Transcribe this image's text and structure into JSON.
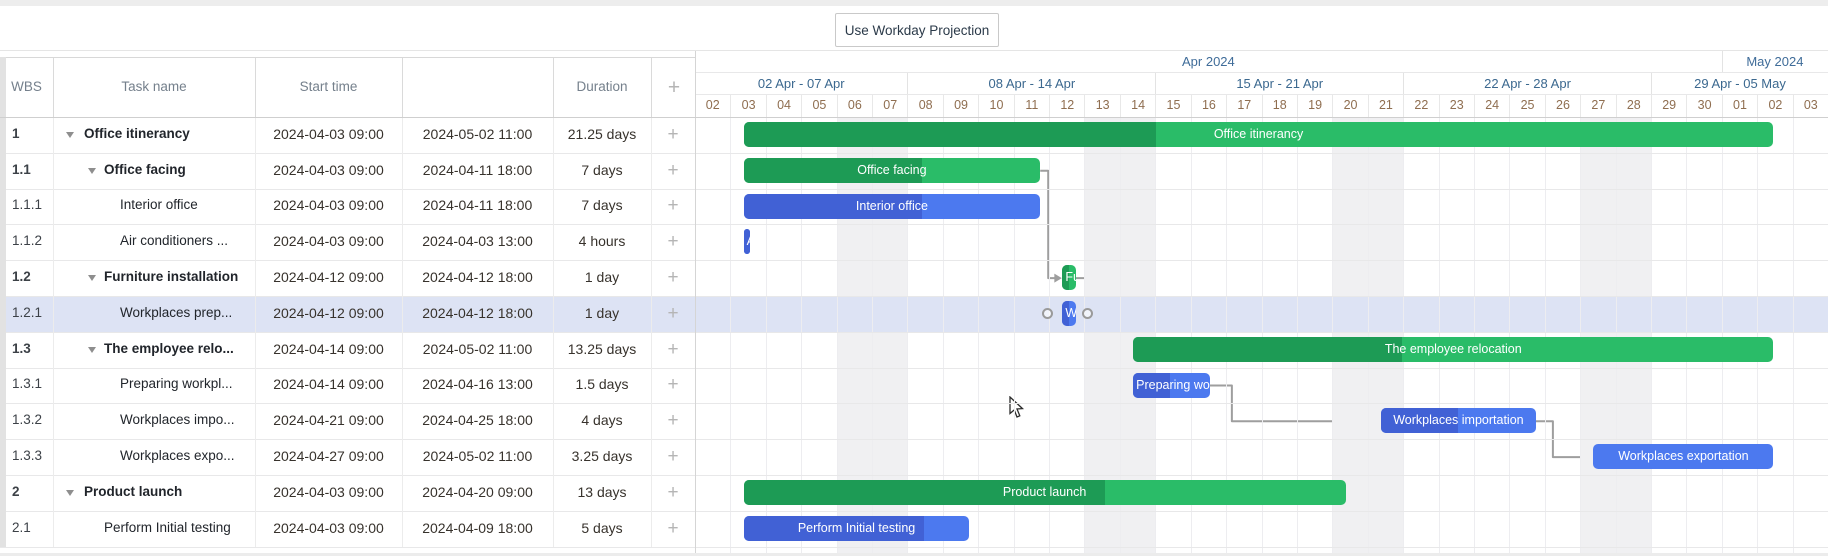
{
  "toolbar": {
    "button_label": "Use Workday Projection"
  },
  "table": {
    "columns": [
      {
        "id": "wbs",
        "label": "WBS"
      },
      {
        "id": "task-name",
        "label": "Task name"
      },
      {
        "id": "start-time",
        "label": "Start time"
      },
      {
        "id": "end-time",
        "label": ""
      },
      {
        "id": "duration",
        "label": "Duration"
      },
      {
        "id": "add-column",
        "label": "+"
      }
    ]
  },
  "timeline": {
    "months": [
      {
        "label": "Apr 2024",
        "days": 29
      },
      {
        "label": "May 2024",
        "days": 3
      }
    ],
    "weeks": [
      {
        "label": "02 Apr - 07 Apr",
        "days": 6
      },
      {
        "label": "08 Apr - 14 Apr",
        "days": 7
      },
      {
        "label": "15 Apr - 21 Apr",
        "days": 7
      },
      {
        "label": "22 Apr - 28 Apr",
        "days": 7
      },
      {
        "label": "29 Apr - 05 May",
        "days": 5
      }
    ],
    "days": [
      "02",
      "03",
      "04",
      "05",
      "06",
      "07",
      "08",
      "09",
      "10",
      "11",
      "12",
      "13",
      "14",
      "15",
      "16",
      "17",
      "18",
      "19",
      "20",
      "21",
      "22",
      "23",
      "24",
      "25",
      "26",
      "27",
      "28",
      "29",
      "30",
      "01",
      "02",
      "03"
    ],
    "weekend_day_indices": [
      4,
      5,
      11,
      12,
      18,
      19,
      25,
      26
    ]
  },
  "tasks": [
    {
      "wbs": "1",
      "name": "Office itinerancy",
      "level": 1,
      "parent": true,
      "selected": false,
      "start": "2024-04-03 09:00",
      "end": "2024-05-02 11:00",
      "duration": "21.25 days",
      "bar": {
        "color": "green",
        "label": "Office itinerancy",
        "start_day": 1.375,
        "end_day": 30.458,
        "progress": 0.4,
        "align": "center"
      }
    },
    {
      "wbs": "1.1",
      "name": "Office facing",
      "level": 2,
      "parent": true,
      "selected": false,
      "start": "2024-04-03 09:00",
      "end": "2024-04-11 18:00",
      "duration": "7 days",
      "bar": {
        "color": "green",
        "label": "Office facing",
        "start_day": 1.375,
        "end_day": 9.75,
        "progress": 0.6,
        "align": "center"
      }
    },
    {
      "wbs": "1.1.1",
      "name": "Interior office",
      "level": 3,
      "parent": false,
      "selected": false,
      "start": "2024-04-03 09:00",
      "end": "2024-04-11 18:00",
      "duration": "7 days",
      "bar": {
        "color": "blue",
        "label": "Interior office",
        "start_day": 1.375,
        "end_day": 9.75,
        "progress": 0.6,
        "align": "center"
      }
    },
    {
      "wbs": "1.1.2",
      "name": "Air conditioners ...",
      "level": 3,
      "parent": false,
      "selected": false,
      "start": "2024-04-03 09:00",
      "end": "2024-04-03 13:00",
      "duration": "4 hours",
      "bar": {
        "color": "blue",
        "label": "Air conditioners",
        "start_day": 1.375,
        "end_day": 1.542,
        "progress": 1.0,
        "align": "left"
      }
    },
    {
      "wbs": "1.2",
      "name": "Furniture installation",
      "level": 2,
      "parent": true,
      "selected": false,
      "start": "2024-04-12 09:00",
      "end": "2024-04-12 18:00",
      "duration": "1 day",
      "bar": {
        "color": "green",
        "label": "Furniture installation",
        "start_day": 10.375,
        "end_day": 10.75,
        "progress": 0.5,
        "align": "left"
      }
    },
    {
      "wbs": "1.2.1",
      "name": "Workplaces prep...",
      "level": 3,
      "parent": false,
      "selected": true,
      "start": "2024-04-12 09:00",
      "end": "2024-04-12 18:00",
      "duration": "1 day",
      "bar": {
        "color": "blue",
        "label": "Workplaces prep.",
        "start_day": 10.375,
        "end_day": 10.75,
        "progress": 0.5,
        "align": "left"
      }
    },
    {
      "wbs": "1.3",
      "name": "The employee relo...",
      "level": 2,
      "parent": true,
      "selected": false,
      "start": "2024-04-14 09:00",
      "end": "2024-05-02 11:00",
      "duration": "13.25 days",
      "bar": {
        "color": "green",
        "label": "The employee relocation",
        "start_day": 12.375,
        "end_day": 30.458,
        "progress": 0.42,
        "align": "center"
      }
    },
    {
      "wbs": "1.3.1",
      "name": "Preparing workpl...",
      "level": 3,
      "parent": false,
      "selected": false,
      "start": "2024-04-14 09:00",
      "end": "2024-04-16 13:00",
      "duration": "1.5 days",
      "bar": {
        "color": "blue",
        "label": "Preparing workplaces",
        "start_day": 12.375,
        "end_day": 14.542,
        "progress": 0.48,
        "align": "left"
      }
    },
    {
      "wbs": "1.3.2",
      "name": "Workplaces impo...",
      "level": 3,
      "parent": false,
      "selected": false,
      "start": "2024-04-21 09:00",
      "end": "2024-04-25 18:00",
      "duration": "4 days",
      "bar": {
        "color": "blue",
        "label": "Workplaces importation",
        "start_day": 19.375,
        "end_day": 23.75,
        "progress": 0.5,
        "align": "center"
      }
    },
    {
      "wbs": "1.3.3",
      "name": "Workplaces expo...",
      "level": 3,
      "parent": false,
      "selected": false,
      "start": "2024-04-27 09:00",
      "end": "2024-05-02 11:00",
      "duration": "3.25 days",
      "bar": {
        "color": "blue",
        "label": "Workplaces exportation",
        "start_day": 25.375,
        "end_day": 30.458,
        "progress": 0.0,
        "align": "center"
      }
    },
    {
      "wbs": "2",
      "name": "Product launch",
      "level": 1,
      "parent": true,
      "selected": false,
      "start": "2024-04-03 09:00",
      "end": "2024-04-20 09:00",
      "duration": "13 days",
      "bar": {
        "color": "green",
        "label": "Product launch",
        "start_day": 1.375,
        "end_day": 18.375,
        "progress": 0.6,
        "align": "center"
      }
    },
    {
      "wbs": "2.1",
      "name": "Perform Initial testing",
      "level": 2,
      "parent": false,
      "selected": false,
      "start": "2024-04-03 09:00",
      "end": "2024-04-09 18:00",
      "duration": "5 days",
      "bar": {
        "color": "blue",
        "label": "Perform Initial testing",
        "start_day": 1.375,
        "end_day": 7.75,
        "progress": 0.8,
        "align": "center"
      }
    }
  ],
  "links": [
    {
      "from_task": 1,
      "to_task": 4
    },
    {
      "from_task": 4,
      "to_task": 6
    },
    {
      "from_task": 7,
      "to_task": 8
    },
    {
      "from_task": 8,
      "to_task": 9
    }
  ],
  "selection": {
    "task_index": 5
  },
  "colors": {
    "green_dark": "#1d9b55",
    "green_light": "#2abc68",
    "blue_dark": "#4161d5",
    "blue_light": "#4c79ef",
    "selected_row": "#dde3f4",
    "weekend": "#f0f0f2",
    "link": "#9e9e9e"
  }
}
